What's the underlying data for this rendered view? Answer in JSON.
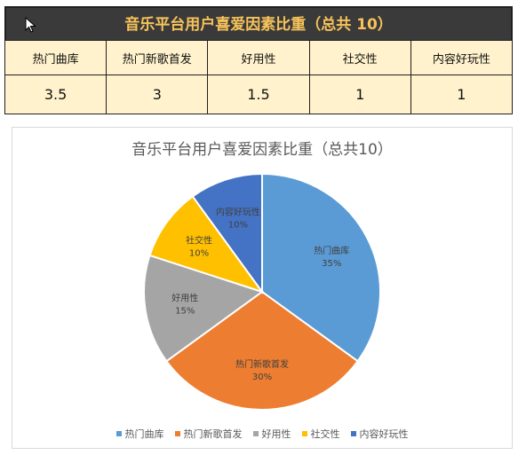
{
  "table": {
    "title": "音乐平台用户喜爱因素比重（总共 10）",
    "headers": [
      "热门曲库",
      "热门新歌首发",
      "好用性",
      "社交性",
      "内容好玩性"
    ],
    "values": [
      "3.5",
      "3",
      "1.5",
      "1",
      "1"
    ]
  },
  "chart_data": {
    "type": "pie",
    "title": "音乐平台用户喜爱因素比重（总共10）",
    "categories": [
      "热门曲库",
      "热门新歌首发",
      "好用性",
      "社交性",
      "内容好玩性"
    ],
    "values": [
      3.5,
      3,
      1.5,
      1,
      1
    ],
    "percent_labels": [
      "35%",
      "30%",
      "15%",
      "10%",
      "10%"
    ],
    "colors": [
      "#5b9bd5",
      "#ed7d31",
      "#a5a5a5",
      "#ffc000",
      "#4472c4"
    ],
    "legend_position": "bottom"
  },
  "colors": {
    "title_bar_bg": "#3a3a3a",
    "title_bar_text": "#f7c35a",
    "table_bg": "#fff2cc"
  }
}
